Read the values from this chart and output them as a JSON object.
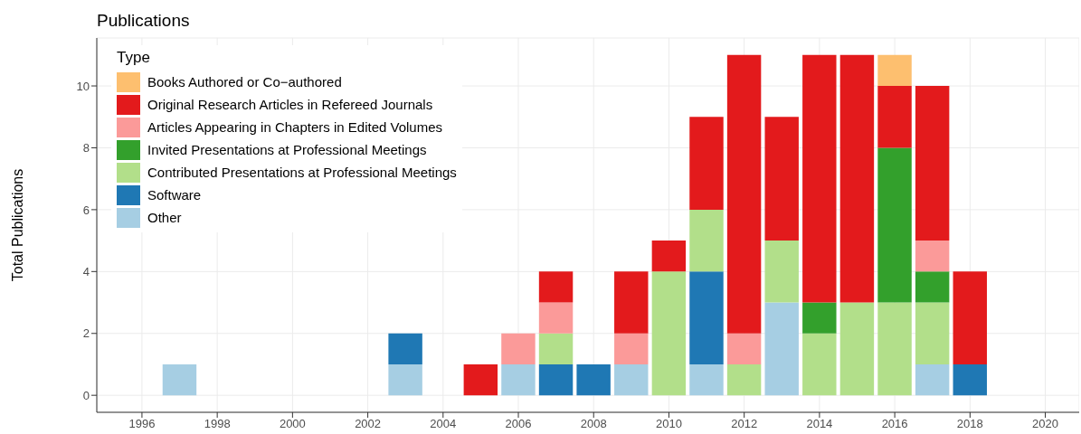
{
  "chart_data": {
    "type": "bar",
    "title": "Publications",
    "ylabel": "Total Publications",
    "legend_title": "Type",
    "stacked": true,
    "x": [
      1997,
      2003,
      2005,
      2006,
      2007,
      2008,
      2009,
      2010,
      2011,
      2012,
      2013,
      2014,
      2015,
      2016,
      2017,
      2018
    ],
    "series": [
      {
        "name": "Other",
        "color": "#a6cee3",
        "values": [
          1,
          1,
          null,
          1,
          null,
          null,
          1,
          null,
          1,
          null,
          3,
          null,
          null,
          null,
          1,
          null
        ]
      },
      {
        "name": "Software",
        "color": "#1f78b4",
        "values": [
          null,
          1,
          null,
          null,
          1,
          1,
          null,
          null,
          3,
          null,
          null,
          null,
          null,
          null,
          null,
          1
        ]
      },
      {
        "name": "Contributed Presentations at Professional Meetings",
        "color": "#b2df8a",
        "values": [
          null,
          null,
          null,
          null,
          1,
          null,
          null,
          4,
          2,
          1,
          2,
          2,
          3,
          3,
          2,
          null
        ]
      },
      {
        "name": "Invited Presentations at Professional Meetings",
        "color": "#33a02c",
        "values": [
          null,
          null,
          null,
          null,
          null,
          null,
          null,
          null,
          null,
          null,
          null,
          1,
          null,
          5,
          1,
          null
        ]
      },
      {
        "name": "Articles Appearing in Chapters in Edited Volumes",
        "color": "#fb9a99",
        "values": [
          null,
          null,
          null,
          1,
          1,
          null,
          1,
          null,
          null,
          1,
          null,
          null,
          null,
          null,
          1,
          null
        ]
      },
      {
        "name": "Original Research Articles in Refereed Journals",
        "color": "#e31a1c",
        "values": [
          null,
          null,
          1,
          null,
          1,
          null,
          2,
          1,
          3,
          9,
          4,
          8,
          8,
          2,
          5,
          3
        ]
      },
      {
        "name": "Books Authored or Co−authored",
        "color": "#fdbf6f",
        "values": [
          null,
          null,
          null,
          null,
          null,
          null,
          null,
          null,
          null,
          null,
          null,
          null,
          null,
          1,
          null,
          null
        ]
      }
    ],
    "xlim": [
      1994.8,
      2020.9
    ],
    "xticks": [
      1996,
      1998,
      2000,
      2002,
      2004,
      2006,
      2008,
      2010,
      2012,
      2014,
      2016,
      2018,
      2020
    ],
    "ylim": [
      -0.55,
      11.55
    ],
    "yticks": [
      0,
      2,
      4,
      6,
      8,
      10
    ],
    "grid": true,
    "legend": "top left"
  }
}
